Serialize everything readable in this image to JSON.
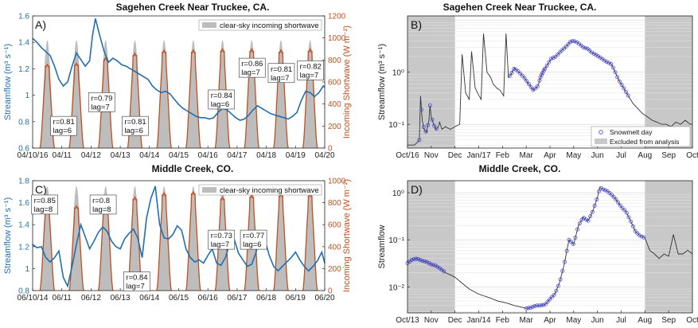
{
  "colors": {
    "streamflow": "#1f6fb0",
    "shortwave_line": "#c1501e",
    "clearsky_fill": "#bdbdbd",
    "excluded_fill": "#c8c8c8",
    "snowmelt_marker": "#3b3bdc",
    "hydrograph": "#333333"
  },
  "chart_data": [
    {
      "id": "A",
      "panel_label": "A)",
      "type": "line",
      "title": "Sagehen Creek Near Truckee, CA.",
      "ylabel_left": "Streamflow (m³ s⁻¹)",
      "ylabel_right": "Incoming Shortwave (W m⁻²)",
      "ylim_left": [
        0.6,
        1.6
      ],
      "ylim_right": [
        0,
        1200
      ],
      "yticks_left": [
        "0.6",
        "0.8",
        "1",
        "1.2",
        "1.4",
        "1.6"
      ],
      "yticks_right": [
        "0",
        "200",
        "400",
        "600",
        "800",
        "1000",
        "1200"
      ],
      "x_ticklabels": [
        "04/10/16",
        "04/11",
        "04/12",
        "04/13",
        "04/14",
        "04/15",
        "04/16",
        "04/17",
        "04/18",
        "04/19",
        "04/20"
      ],
      "legend": "clear-sky incoming shortwave",
      "clear_sky_peak": 980,
      "shortwave_peaks": [
        760,
        770,
        820,
        860,
        890,
        890,
        900,
        900,
        890,
        900
      ],
      "streamflow_x": [
        0,
        0.15,
        0.3,
        0.45,
        0.6,
        0.75,
        0.9,
        1.05,
        1.2,
        1.35,
        1.5,
        1.65,
        1.8,
        1.95,
        2.05,
        2.15,
        2.3,
        2.45,
        2.6,
        2.75,
        2.9,
        3.05,
        3.2,
        3.35,
        3.5,
        3.65,
        3.8,
        3.95,
        4.1,
        4.25,
        4.4,
        4.55,
        4.7,
        4.85,
        5.0,
        5.15,
        5.3,
        5.45,
        5.6,
        5.75,
        5.9,
        6.05,
        6.2,
        6.35,
        6.5,
        6.65,
        6.8,
        6.95,
        7.1,
        7.25,
        7.4,
        7.55,
        7.7,
        7.85,
        8.0,
        8.15,
        8.3,
        8.45,
        8.6,
        8.75,
        8.9,
        9.05,
        9.2,
        9.35,
        9.5,
        9.65,
        9.8,
        9.95,
        10.0
      ],
      "streamflow_y": [
        1.43,
        1.4,
        1.36,
        1.33,
        1.3,
        1.22,
        1.12,
        1.07,
        1.1,
        1.22,
        1.32,
        1.27,
        1.22,
        1.26,
        1.45,
        1.58,
        1.45,
        1.33,
        1.25,
        1.28,
        1.26,
        1.23,
        1.22,
        1.2,
        1.18,
        1.16,
        1.14,
        1.12,
        1.07,
        1.04,
        1.02,
        1.03,
        1.01,
        0.97,
        0.93,
        0.9,
        0.88,
        0.86,
        0.84,
        0.83,
        0.83,
        0.82,
        0.83,
        0.87,
        0.9,
        0.89,
        0.86,
        0.83,
        0.81,
        0.82,
        0.85,
        0.89,
        0.92,
        0.9,
        0.88,
        0.86,
        0.85,
        0.84,
        0.83,
        0.82,
        0.84,
        0.87,
        0.96,
        1.03,
        1.02,
        0.99,
        1.02,
        1.07,
        1.06
      ],
      "annotations": [
        {
          "r": "r=0.81",
          "lag": "lag=6"
        },
        {
          "r": "r=0.79",
          "lag": "lag=7"
        },
        {
          "r": "r=0.81",
          "lag": "lag=6"
        },
        {
          "r": "r=0.84",
          "lag": "lag=6"
        },
        {
          "r": "r=0.86",
          "lag": "lag=7"
        },
        {
          "r": "r=0.81",
          "lag": "lag=7"
        },
        {
          "r": "r=0.82",
          "lag": "lag=7"
        }
      ]
    },
    {
      "id": "B",
      "panel_label": "B)",
      "type": "line",
      "title": "Sagehen Creek Near Truckee, CA.",
      "ylabel": "Streamflow (m³ s⁻¹)",
      "yscale": "log",
      "ylim": [
        0.035,
        12
      ],
      "yticks": [
        "10⁻¹",
        "10⁰"
      ],
      "x_ticklabels": [
        "Oct/16",
        "Nov",
        "Dec",
        "Jan/17",
        "Feb",
        "Mar",
        "Apr",
        "May",
        "Jun",
        "Jul",
        "Aug",
        "Sep",
        "Oct"
      ],
      "excluded_ranges": [
        [
          0,
          2
        ],
        [
          10,
          12
        ]
      ],
      "legend": [
        "Snowmelt day",
        "Excluded from analysis"
      ],
      "hydro_x": [
        0,
        0.3,
        0.5,
        0.55,
        0.62,
        0.7,
        0.8,
        0.9,
        0.95,
        1.0,
        1.1,
        1.2,
        1.3,
        1.35,
        1.45,
        1.6,
        1.8,
        2.0,
        2.2,
        2.3,
        2.45,
        2.6,
        2.7,
        2.85,
        2.95,
        3.1,
        3.2,
        3.35,
        3.5,
        3.6,
        3.75,
        3.9,
        4.05,
        4.15,
        4.25,
        4.35,
        4.5,
        4.7,
        4.9,
        5.1,
        5.3,
        5.5,
        5.6,
        5.75,
        5.9,
        6.05,
        6.25,
        6.45,
        6.65,
        6.85,
        7.0,
        7.2,
        7.4,
        7.6,
        7.75,
        7.9,
        8.05,
        8.2,
        8.35,
        8.5,
        8.6,
        8.75,
        8.9,
        9.1,
        9.3,
        9.5,
        9.7,
        9.9,
        10.1,
        10.3,
        10.5,
        10.7,
        10.9,
        11.1,
        11.3,
        11.5,
        11.7,
        11.9,
        12.0
      ],
      "hydro_y": [
        0.04,
        0.04,
        0.05,
        0.35,
        0.12,
        0.08,
        0.07,
        0.12,
        0.23,
        0.14,
        0.1,
        0.08,
        0.09,
        0.11,
        0.08,
        0.09,
        0.08,
        0.09,
        0.1,
        2.2,
        0.4,
        0.3,
        2.5,
        0.5,
        0.4,
        0.3,
        5.5,
        1.0,
        0.8,
        0.6,
        0.5,
        0.45,
        0.35,
        5.5,
        0.8,
        0.9,
        1.2,
        1.0,
        0.8,
        0.6,
        0.45,
        0.55,
        0.8,
        1.1,
        1.4,
        1.8,
        2.0,
        2.5,
        3.0,
        3.8,
        4.0,
        3.6,
        3.0,
        2.8,
        2.4,
        2.2,
        2.0,
        1.8,
        1.6,
        1.5,
        1.4,
        1.0,
        0.7,
        0.5,
        0.35,
        0.25,
        0.2,
        0.16,
        0.14,
        0.12,
        0.11,
        0.1,
        0.1,
        0.09,
        0.11,
        0.1,
        0.12,
        0.1,
        0.1
      ],
      "snowmelt_ranges": [
        [
          0.5,
          1.3
        ],
        [
          4.3,
          5.8
        ],
        [
          5.6,
          9.3
        ]
      ]
    },
    {
      "id": "C",
      "panel_label": "C)",
      "type": "line",
      "title": "Middle Creek, CO.",
      "ylabel_left": "Streamflow (m³ s⁻¹)",
      "ylabel_right": "Incoming Shortwave (W m⁻²)",
      "ylim_left": [
        0.8,
        1.8
      ],
      "ylim_right": [
        0,
        1000
      ],
      "yticks_left": [
        "0.8",
        "1",
        "1.2",
        "1.4",
        "1.6",
        "1.8"
      ],
      "yticks_right": [
        "0",
        "200",
        "400",
        "600",
        "800",
        "1000"
      ],
      "x_ticklabels": [
        "06/10/14",
        "06/11",
        "06/12",
        "06/13",
        "06/14",
        "06/15",
        "06/16",
        "06/17",
        "06/18",
        "06/19",
        "06/20"
      ],
      "legend": "clear-sky incoming shortwave",
      "clear_sky_peak": 950,
      "shortwave_peaks": [
        800,
        770,
        860,
        850,
        890,
        900,
        850,
        870,
        880,
        880
      ],
      "streamflow_x": [
        0,
        0.15,
        0.3,
        0.45,
        0.6,
        0.75,
        0.9,
        1.05,
        1.2,
        1.35,
        1.5,
        1.65,
        1.8,
        1.95,
        2.1,
        2.25,
        2.4,
        2.55,
        2.7,
        2.85,
        3.0,
        3.15,
        3.3,
        3.45,
        3.6,
        3.75,
        3.9,
        4.05,
        4.2,
        4.35,
        4.5,
        4.65,
        4.8,
        4.95,
        5.1,
        5.25,
        5.4,
        5.55,
        5.7,
        5.85,
        6.0,
        6.15,
        6.3,
        6.45,
        6.6,
        6.75,
        6.9,
        7.05,
        7.2,
        7.35,
        7.5,
        7.65,
        7.8,
        7.95,
        8.1,
        8.25,
        8.4,
        8.55,
        8.7,
        8.85,
        9.0,
        9.15,
        9.3,
        9.45,
        9.6,
        9.75,
        9.9,
        10.0
      ],
      "streamflow_y": [
        1.22,
        1.19,
        1.2,
        1.1,
        1.06,
        1.1,
        1.16,
        0.92,
        0.84,
        1.02,
        1.22,
        1.4,
        1.29,
        1.18,
        1.25,
        1.33,
        1.38,
        1.34,
        1.25,
        1.2,
        1.18,
        1.27,
        1.32,
        1.36,
        1.28,
        1.1,
        1.46,
        1.64,
        1.75,
        1.4,
        1.28,
        1.27,
        1.31,
        1.39,
        1.35,
        1.18,
        1.1,
        1.06,
        1.08,
        1.05,
        1.12,
        1.18,
        1.05,
        1.03,
        1.1,
        1.23,
        1.27,
        1.14,
        1.08,
        1.02,
        1.04,
        1.15,
        1.34,
        1.26,
        1.12,
        1.02,
        0.98,
        1.02,
        1.06,
        1.1,
        1.15,
        1.08,
        1.02,
        0.98,
        1.02,
        1.07,
        1.15,
        1.05
      ],
      "annotations": [
        {
          "r": "r=0.85",
          "lag": "lag=8"
        },
        {
          "r": "r=0.8",
          "lag": "lag=8"
        },
        {
          "r": "r=0.84",
          "lag": "lag=7"
        },
        {
          "r": "r=0.73",
          "lag": "lag=7"
        },
        {
          "r": "r=0.77",
          "lag": "lag=6"
        }
      ]
    },
    {
      "id": "D",
      "panel_label": "D)",
      "type": "line",
      "title": "Middle Creek, CO.",
      "ylabel": "Streamflow",
      "yscale": "log",
      "ylim": [
        0.0028,
        1.8
      ],
      "yticks": [
        "10⁻²",
        "10⁻¹",
        "10⁰"
      ],
      "x_ticklabels": [
        "Oct/13",
        "Nov",
        "Dec",
        "Jan/14",
        "Feb",
        "Mar",
        "Apr",
        "May",
        "Jun",
        "Jul",
        "Aug",
        "Sep",
        "Oct"
      ],
      "excluded_ranges": [
        [
          0,
          2
        ],
        [
          10,
          12
        ]
      ],
      "hydro_x": [
        0,
        0.2,
        0.4,
        0.6,
        0.8,
        1.0,
        1.2,
        1.4,
        1.6,
        1.8,
        2.0,
        2.3,
        2.6,
        3.0,
        3.4,
        3.8,
        4.2,
        4.5,
        4.8,
        5.0,
        5.2,
        5.4,
        5.6,
        5.8,
        6.0,
        6.2,
        6.4,
        6.6,
        6.8,
        7.0,
        7.2,
        7.4,
        7.6,
        7.8,
        8.0,
        8.1,
        8.2,
        8.4,
        8.6,
        8.8,
        9.0,
        9.2,
        9.4,
        9.6,
        9.8,
        10.0,
        10.2,
        10.4,
        10.6,
        10.8,
        11.0,
        11.2,
        11.4,
        11.6,
        11.8,
        12.0
      ],
      "hydro_y": [
        0.032,
        0.038,
        0.04,
        0.036,
        0.034,
        0.03,
        0.028,
        0.024,
        0.02,
        0.018,
        0.016,
        0.012,
        0.009,
        0.007,
        0.006,
        0.005,
        0.0045,
        0.004,
        0.0037,
        0.0035,
        0.0036,
        0.004,
        0.004,
        0.0042,
        0.0055,
        0.007,
        0.012,
        0.03,
        0.1,
        0.08,
        0.2,
        0.3,
        0.25,
        0.4,
        0.8,
        1.3,
        1.2,
        1.1,
        0.9,
        0.7,
        0.5,
        0.4,
        0.25,
        0.15,
        0.12,
        0.11,
        0.06,
        0.05,
        0.04,
        0.05,
        0.045,
        0.13,
        0.05,
        0.05,
        0.06,
        0.05
      ],
      "snowmelt_ranges": [
        [
          0,
          1.6
        ],
        [
          5.0,
          10.0
        ]
      ]
    }
  ]
}
